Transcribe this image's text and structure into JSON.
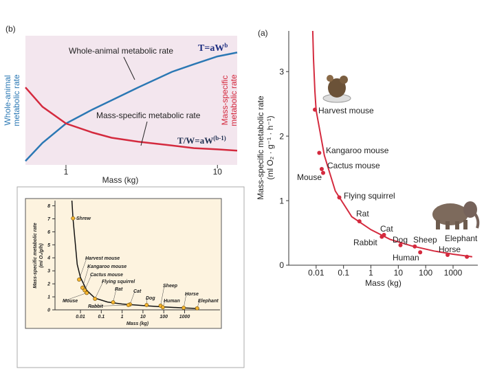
{
  "chart_data": [
    {
      "type": "line",
      "panel_label": "(b)",
      "xlabel": "Mass (kg)",
      "ylabel": [
        "Whole-animal",
        "metabolic rate"
      ],
      "y2label": [
        "Mass-specific",
        "metabolic rate"
      ],
      "xscale": "log",
      "xlim": [
        0.54,
        13.5
      ],
      "xticks": [
        1,
        10
      ],
      "ylim": [
        0,
        1
      ],
      "x": [
        0.54,
        0.7,
        1,
        1.5,
        2,
        3,
        5,
        7,
        10,
        13.5
      ],
      "series": [
        {
          "name": "Whole-animal metabolic rate",
          "color": "#2b78b4",
          "values": [
            0.03,
            0.17,
            0.32,
            0.43,
            0.5,
            0.6,
            0.72,
            0.78,
            0.84,
            0.87
          ]
        },
        {
          "name": "Mass-specific metabolic rate",
          "color": "#d42a3e",
          "values": [
            0.6,
            0.45,
            0.32,
            0.25,
            0.21,
            0.18,
            0.15,
            0.13,
            0.12,
            0.11
          ]
        }
      ],
      "annotations": [
        {
          "text": "T=aW",
          "sup": "b"
        },
        {
          "text": "T/W=aW",
          "sup": "(b-1)"
        }
      ]
    },
    {
      "type": "scatter",
      "panel_label": "(a)",
      "xlabel": "Mass (kg)",
      "ylabel": [
        "Mass-specific metabolic rate",
        "(ml O₂ · g⁻¹ · h⁻¹)"
      ],
      "xscale": "log",
      "xlim": [
        0.001,
        8000
      ],
      "xticks": [
        0.01,
        0.1,
        1,
        10,
        100,
        1000
      ],
      "ylim": [
        0,
        3.63
      ],
      "yticks": [
        0,
        1,
        2,
        3
      ],
      "color": "#d42a3e",
      "labels": [
        "Harvest mouse",
        "Kangaroo mouse",
        "Cactus mouse",
        "Mouse",
        "Flying squirrel",
        "Rat",
        "Cat",
        "Rabbit",
        "Dog",
        "Sheep",
        "Human",
        "Horse",
        "Elephant"
      ],
      "x": [
        0.009,
        0.013,
        0.016,
        0.018,
        0.07,
        0.38,
        3,
        2.5,
        12,
        40,
        63,
        630,
        3200
      ],
      "values": [
        2.41,
        1.74,
        1.49,
        1.43,
        1.05,
        0.68,
        0.47,
        0.44,
        0.31,
        0.29,
        0.2,
        0.16,
        0.13
      ],
      "fit": {
        "x": [
          0.0075,
          0.008,
          0.009,
          0.01,
          0.02,
          0.05,
          0.2,
          1,
          5,
          30,
          200,
          1000,
          5000
        ],
        "values": [
          3.63,
          3.2,
          2.7,
          2.4,
          1.7,
          1.15,
          0.75,
          0.55,
          0.4,
          0.3,
          0.22,
          0.17,
          0.13
        ]
      }
    },
    {
      "type": "scatter",
      "xlabel": "Mass (kg)",
      "ylabel": [
        "Mass-specific metabolic rate",
        "(ml O₂/g/h)"
      ],
      "xscale": "log",
      "xlim": [
        0.0006,
        50000
      ],
      "xticks": [
        0.01,
        0.1,
        1,
        10,
        100,
        1000
      ],
      "ylim": [
        0,
        8.4
      ],
      "yticks": [
        0,
        1,
        2,
        3,
        4,
        5,
        6,
        7,
        8
      ],
      "color": "#f5b530",
      "labels": [
        "Shrew",
        "Harvest mouse",
        "Kangaroo mouse",
        "Cactus mouse",
        "Mouse",
        "Flying squirrel",
        "Rat",
        "Cat",
        "Rabbit",
        "Dog",
        "Sheep",
        "Human",
        "Horse",
        "Elephant"
      ],
      "x": [
        0.0044,
        0.0086,
        0.0125,
        0.016,
        0.02,
        0.05,
        0.37,
        2.4,
        2,
        15,
        70,
        90,
        900,
        4000
      ],
      "values": [
        7.04,
        2.33,
        1.7,
        1.5,
        1.3,
        0.85,
        0.58,
        0.42,
        0.37,
        0.37,
        0.32,
        0.2,
        0.16,
        0.12
      ],
      "fit": {
        "x": [
          0.0039,
          0.0044,
          0.007,
          0.01,
          0.02,
          0.05,
          0.2,
          1,
          10,
          100,
          1000,
          5000
        ],
        "values": [
          8.4,
          7.0,
          3.5,
          2.5,
          1.5,
          0.9,
          0.6,
          0.45,
          0.33,
          0.22,
          0.15,
          0.1
        ]
      }
    }
  ]
}
